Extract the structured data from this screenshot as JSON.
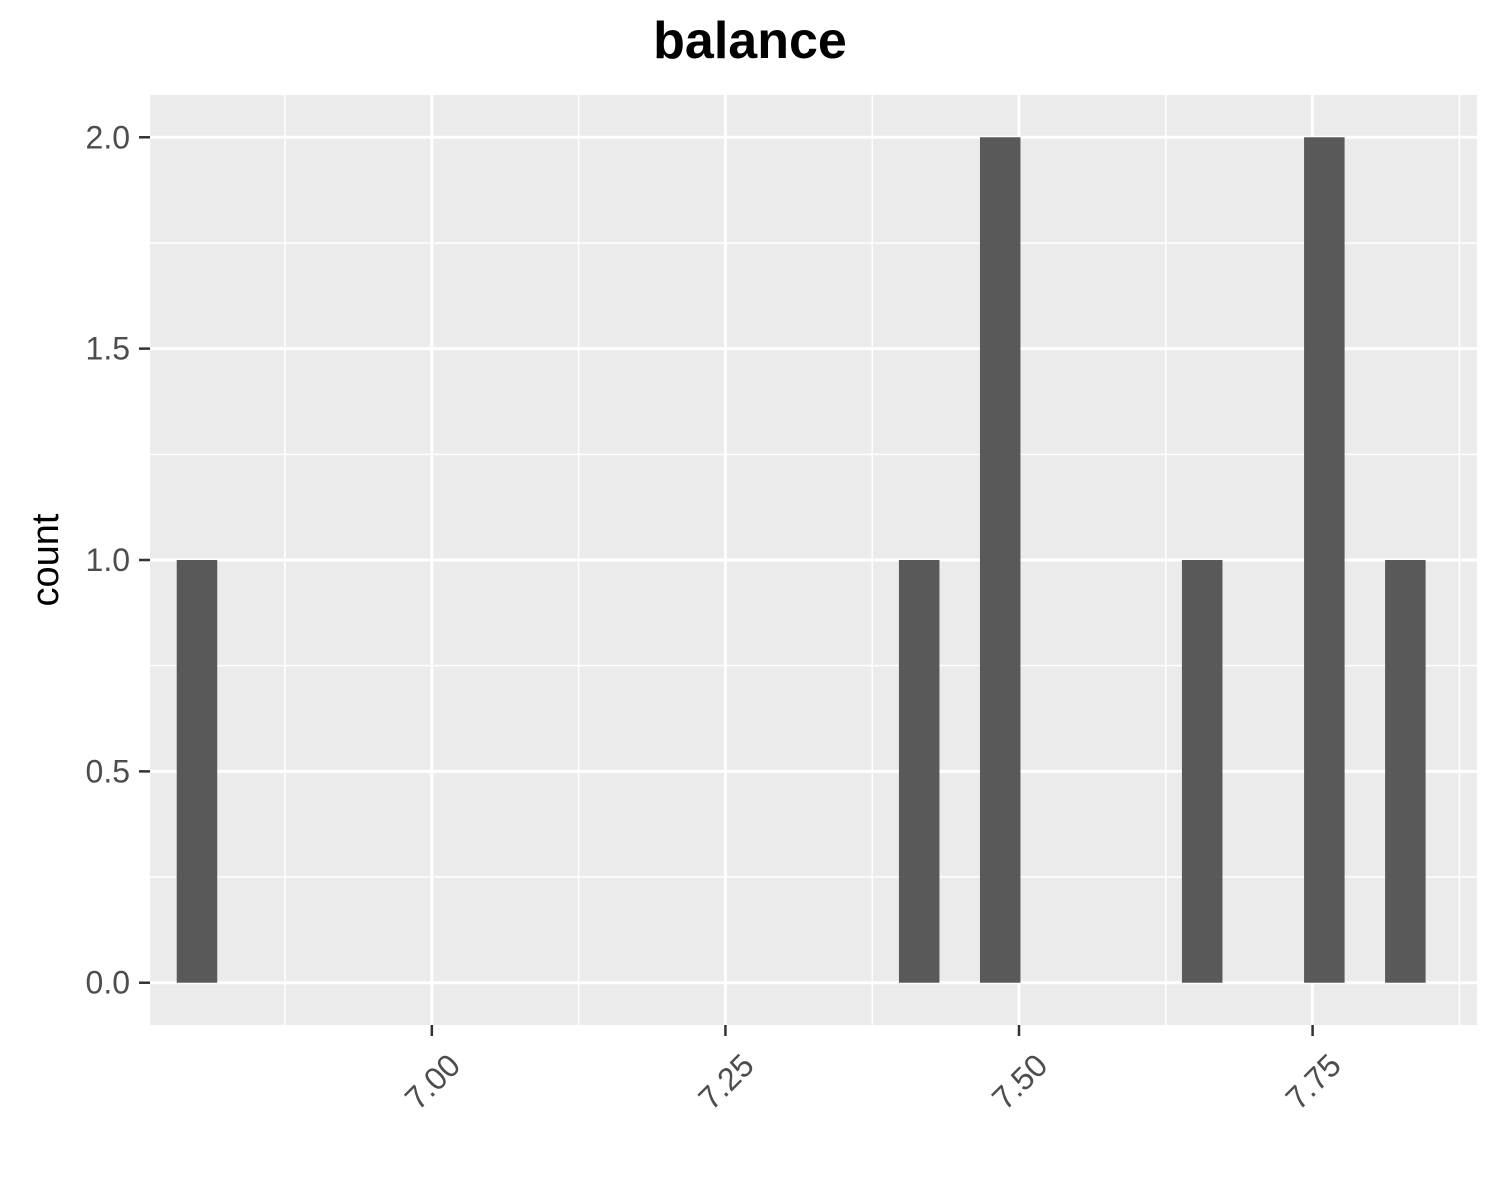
{
  "chart_data": {
    "type": "bar",
    "title": "balance",
    "xlabel": "",
    "ylabel": "count",
    "xlim": [
      6.76,
      7.89
    ],
    "ylim": [
      -0.1,
      2.1
    ],
    "bin_width": 0.0345,
    "bars": [
      {
        "x": 6.8,
        "count": 1
      },
      {
        "x": 7.415,
        "count": 1
      },
      {
        "x": 7.484,
        "count": 2
      },
      {
        "x": 7.656,
        "count": 1
      },
      {
        "x": 7.76,
        "count": 2
      },
      {
        "x": 7.829,
        "count": 1
      }
    ],
    "x_ticks": [
      7.0,
      7.25,
      7.5,
      7.75
    ],
    "x_tick_labels": [
      "7.00",
      "7.25",
      "7.50",
      "7.75"
    ],
    "x_minor_ticks": [
      6.875,
      7.125,
      7.375,
      7.625,
      7.875
    ],
    "y_ticks": [
      0.0,
      0.5,
      1.0,
      1.5,
      2.0
    ],
    "y_tick_labels": [
      "0.0",
      "0.5",
      "1.0",
      "1.5",
      "2.0"
    ],
    "y_minor_ticks": [
      0.25,
      0.75,
      1.25,
      1.75
    ],
    "grid": true,
    "colors": {
      "panel_background": "#ebebeb",
      "grid_line": "#ffffff",
      "bar_fill": "#595959",
      "tick_text": "#4d4d4d",
      "tick_mark": "#333333"
    }
  }
}
